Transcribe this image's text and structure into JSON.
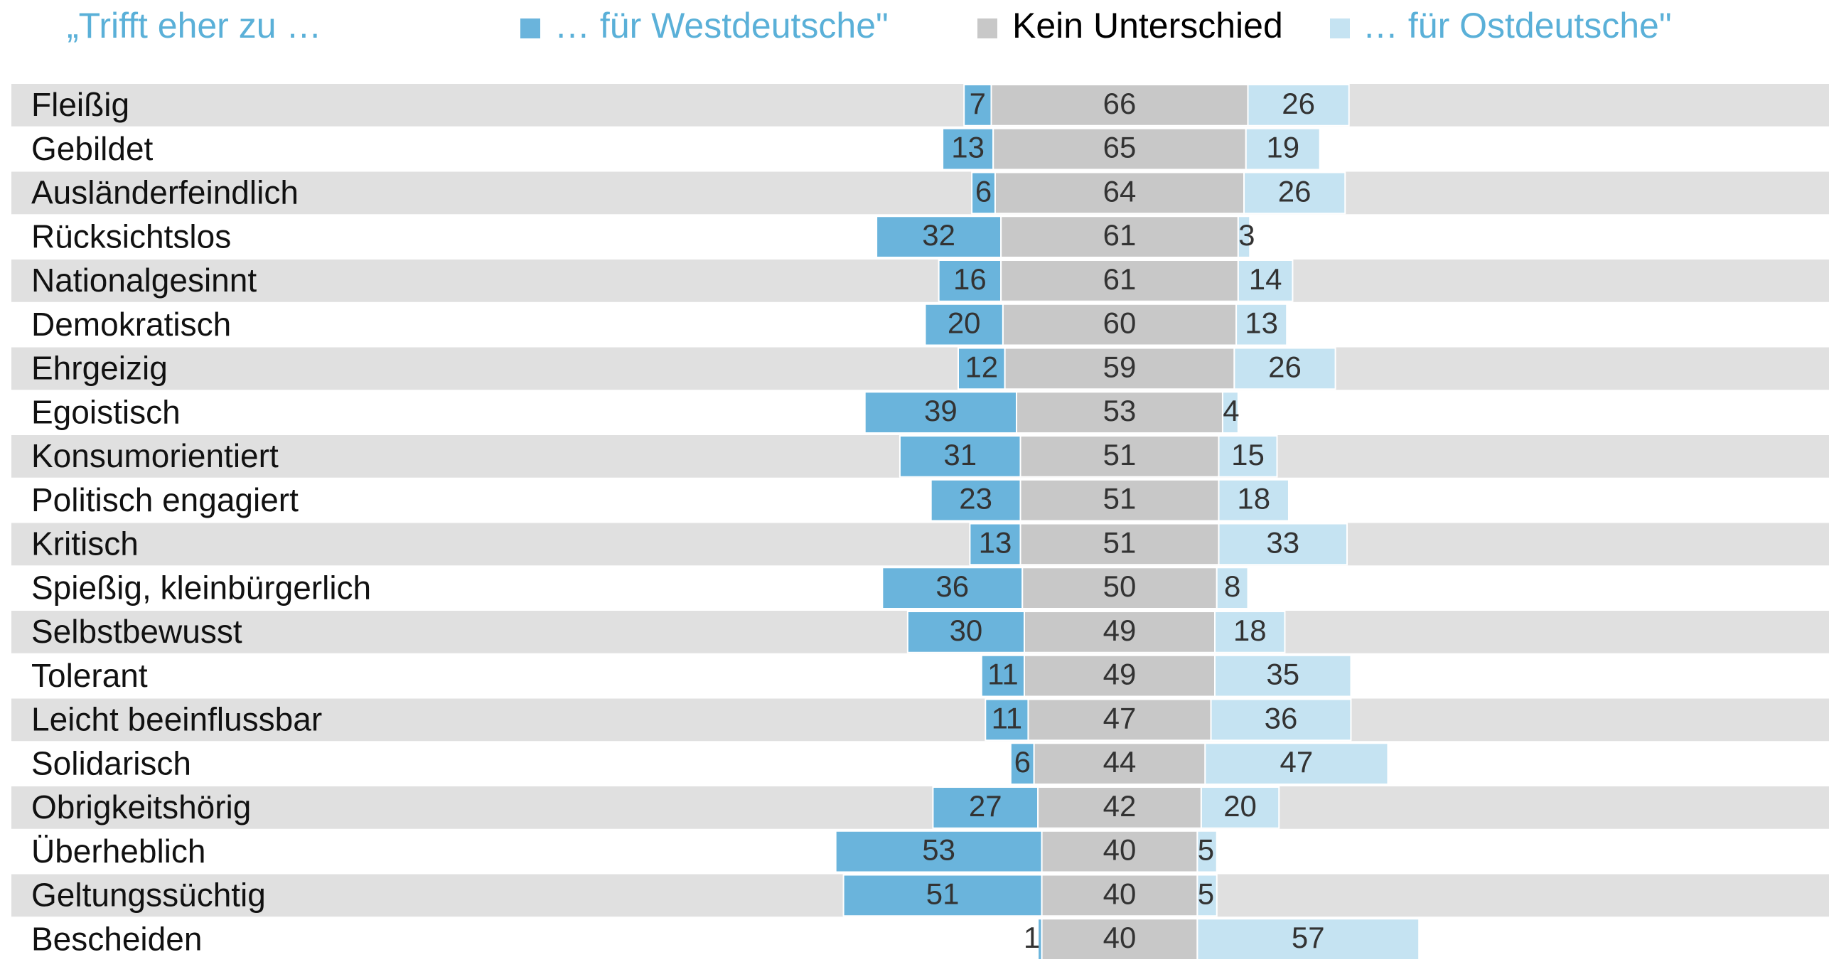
{
  "chart_data": {
    "type": "diverging-bar",
    "legend_title": "„Trifft eher zu …",
    "categories": [
      "Fleißig",
      "Gebildet",
      "Ausländerfeindlich",
      "Rücksichtslos",
      "Nationalgesinnt",
      "Demokratisch",
      "Ehrgeizig",
      "Egoistisch",
      "Konsumorientiert",
      "Politisch engagiert",
      "Kritisch",
      "Spießig, kleinbürgerlich",
      "Selbstbewusst",
      "Tolerant",
      "Leicht beeinflussbar",
      "Solidarisch",
      "Obrigkeitshörig",
      "Überheblich",
      "Geltungssüchtig",
      "Bescheiden"
    ],
    "series": [
      {
        "name": "… für Westdeutsche\"",
        "color": "#6ab4dc",
        "values": [
          7,
          13,
          6,
          32,
          16,
          20,
          12,
          39,
          31,
          23,
          13,
          36,
          30,
          11,
          11,
          6,
          27,
          53,
          51,
          1
        ]
      },
      {
        "name": "Kein Unterschied",
        "color": "#c8c8c8",
        "values": [
          66,
          65,
          64,
          61,
          61,
          60,
          59,
          53,
          51,
          51,
          51,
          50,
          49,
          49,
          47,
          44,
          42,
          40,
          40,
          40
        ]
      },
      {
        "name": "… für Ostdeutsche\"",
        "color": "#c5e3f2",
        "values": [
          26,
          19,
          26,
          3,
          14,
          13,
          26,
          4,
          15,
          18,
          33,
          8,
          18,
          35,
          36,
          47,
          20,
          5,
          5,
          57
        ]
      }
    ],
    "legend_text_colors": [
      "#5ab0d8",
      "#000000",
      "#5ab0d8"
    ]
  }
}
